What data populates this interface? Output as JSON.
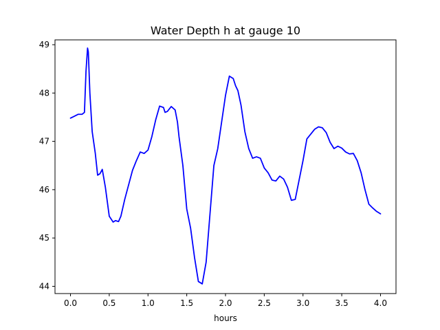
{
  "chart_data": {
    "type": "line",
    "title": "Water Depth h at gauge 10",
    "xlabel": "hours",
    "ylabel": "",
    "xlim": [
      -0.2,
      4.2
    ],
    "ylim": [
      43.85,
      49.1
    ],
    "x_ticks": [
      0.0,
      0.5,
      1.0,
      1.5,
      2.0,
      2.5,
      3.0,
      3.5,
      4.0
    ],
    "x_tick_labels": [
      "0.0",
      "0.5",
      "1.0",
      "1.5",
      "2.0",
      "2.5",
      "3.0",
      "3.5",
      "4.0"
    ],
    "y_ticks": [
      44,
      45,
      46,
      47,
      48,
      49
    ],
    "y_tick_labels": [
      "44",
      "45",
      "46",
      "47",
      "48",
      "49"
    ],
    "grid": false,
    "legend": "none",
    "series": [
      {
        "color": "#0000ff",
        "x": [
          0.0,
          0.05,
          0.1,
          0.15,
          0.18,
          0.2,
          0.22,
          0.23,
          0.25,
          0.28,
          0.32,
          0.35,
          0.38,
          0.41,
          0.45,
          0.5,
          0.55,
          0.58,
          0.62,
          0.65,
          0.7,
          0.8,
          0.85,
          0.9,
          0.95,
          1.0,
          1.05,
          1.1,
          1.15,
          1.2,
          1.22,
          1.25,
          1.3,
          1.35,
          1.38,
          1.4,
          1.45,
          1.5,
          1.55,
          1.6,
          1.65,
          1.7,
          1.75,
          1.8,
          1.85,
          1.9,
          1.95,
          2.0,
          2.05,
          2.1,
          2.13,
          2.16,
          2.2,
          2.25,
          2.3,
          2.35,
          2.4,
          2.45,
          2.5,
          2.55,
          2.6,
          2.65,
          2.7,
          2.75,
          2.8,
          2.85,
          2.9,
          2.95,
          3.0,
          3.05,
          3.1,
          3.15,
          3.2,
          3.25,
          3.3,
          3.35,
          3.4,
          3.45,
          3.5,
          3.55,
          3.6,
          3.65,
          3.7,
          3.75,
          3.8,
          3.85,
          3.9,
          3.95,
          4.0
        ],
        "y": [
          47.48,
          47.52,
          47.56,
          47.56,
          47.6,
          48.45,
          48.93,
          48.85,
          48.0,
          47.2,
          46.75,
          46.3,
          46.33,
          46.42,
          46.05,
          45.45,
          45.33,
          45.36,
          45.34,
          45.45,
          45.8,
          46.4,
          46.6,
          46.78,
          46.75,
          46.82,
          47.1,
          47.45,
          47.73,
          47.7,
          47.6,
          47.62,
          47.72,
          47.65,
          47.4,
          47.1,
          46.5,
          45.6,
          45.2,
          44.6,
          44.1,
          44.05,
          44.5,
          45.5,
          46.5,
          46.85,
          47.4,
          47.95,
          48.35,
          48.3,
          48.15,
          48.05,
          47.75,
          47.2,
          46.85,
          46.65,
          46.68,
          46.65,
          46.45,
          46.35,
          46.2,
          46.18,
          46.28,
          46.22,
          46.05,
          45.78,
          45.8,
          46.2,
          46.6,
          47.05,
          47.15,
          47.25,
          47.3,
          47.28,
          47.18,
          46.98,
          46.85,
          46.9,
          46.86,
          46.78,
          46.74,
          46.75,
          46.6,
          46.35,
          46.0,
          45.7,
          45.62,
          45.55,
          45.5
        ]
      }
    ]
  }
}
